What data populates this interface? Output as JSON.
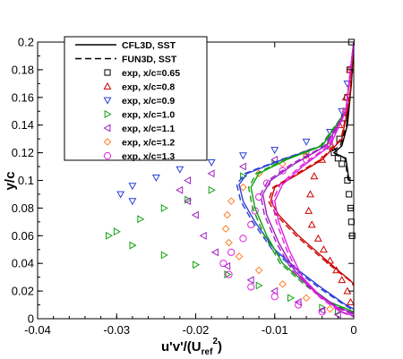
{
  "chart_data": {
    "type": "line",
    "xlabel": "u'v'/(U",
    "xlabel_sub": "ref",
    "xlabel_sup": "2",
    "xlabel_end": ")",
    "ylabel": "y/c",
    "xlim": [
      -0.04,
      0
    ],
    "ylim": [
      0,
      0.2
    ],
    "x_ticks": [
      -0.04,
      -0.03,
      -0.02,
      -0.01,
      0
    ],
    "x_tick_labels": [
      "-0.04",
      "-0.03",
      "-0.02",
      "-0.01",
      "0"
    ],
    "y_ticks": [
      0,
      0.02,
      0.04,
      0.06,
      0.08,
      0.1,
      0.12,
      0.14,
      0.16,
      0.18,
      0.2
    ],
    "y_tick_labels": [
      "0",
      "0.02",
      "0.04",
      "0.06",
      "0.08",
      "0.1",
      "0.12",
      "0.14",
      "0.16",
      "0.18",
      "0.2"
    ],
    "grid": false,
    "legend_position": "top-left",
    "legend": [
      {
        "label": "CFL3D, SST",
        "kind": "solid-line",
        "color": "#000000"
      },
      {
        "label": "FUN3D, SST",
        "kind": "dashed-line",
        "color": "#000000"
      },
      {
        "label": "exp, x/c=0.65",
        "kind": "square",
        "color": "#000000"
      },
      {
        "label": "exp, x/c=0.8",
        "kind": "triangle-up",
        "color": "#cc0000"
      },
      {
        "label": "exp, x/c=0.9",
        "kind": "triangle-down",
        "color": "#2b3fd8"
      },
      {
        "label": "exp, x/c=1.0",
        "kind": "triangle-right",
        "color": "#12a012"
      },
      {
        "label": "exp, x/c=1.1",
        "kind": "triangle-left",
        "color": "#a020c0"
      },
      {
        "label": "exp, x/c=1.2",
        "kind": "diamond",
        "color": "#ff7f28"
      },
      {
        "label": "exp, x/c=1.3",
        "kind": "circle",
        "color": "#e020e0"
      }
    ],
    "cfd_curves": [
      {
        "station": "0.65",
        "color": "#000000",
        "cfl3d": [
          [
            0,
            0.2
          ],
          [
            -0.0003,
            0.17
          ],
          [
            -0.0008,
            0.14
          ],
          [
            -0.0015,
            0.125
          ],
          [
            -0.0025,
            0.12
          ],
          [
            -0.0018,
            0.118
          ],
          [
            -0.001,
            0.116
          ],
          [
            -0.0006,
            0.1
          ]
        ],
        "fun3d": [
          [
            0,
            0.2
          ],
          [
            -0.0003,
            0.17
          ],
          [
            -0.0009,
            0.14
          ],
          [
            -0.0017,
            0.125
          ],
          [
            -0.0028,
            0.121
          ],
          [
            -0.002,
            0.118
          ],
          [
            -0.0011,
            0.116
          ],
          [
            -0.0007,
            0.1
          ]
        ]
      },
      {
        "station": "0.8",
        "color": "#cc0000",
        "cfl3d": [
          [
            0,
            0.2
          ],
          [
            -0.0005,
            0.16
          ],
          [
            -0.0015,
            0.13
          ],
          [
            -0.004,
            0.115
          ],
          [
            -0.0075,
            0.103
          ],
          [
            -0.01,
            0.095
          ],
          [
            -0.0105,
            0.085
          ],
          [
            -0.0095,
            0.075
          ],
          [
            -0.007,
            0.06
          ],
          [
            -0.004,
            0.045
          ],
          [
            -0.002,
            0.035
          ],
          [
            -0.0005,
            0.028
          ],
          [
            0,
            0.025
          ]
        ],
        "fun3d": [
          [
            0,
            0.2
          ],
          [
            -0.0005,
            0.16
          ],
          [
            -0.0016,
            0.13
          ],
          [
            -0.0042,
            0.115
          ],
          [
            -0.0078,
            0.103
          ],
          [
            -0.0102,
            0.095
          ],
          [
            -0.0108,
            0.085
          ],
          [
            -0.0098,
            0.075
          ],
          [
            -0.0073,
            0.06
          ],
          [
            -0.0043,
            0.045
          ],
          [
            -0.0022,
            0.035
          ],
          [
            -0.0006,
            0.028
          ],
          [
            0,
            0.024
          ]
        ]
      },
      {
        "station": "0.9",
        "color": "#2b3fd8",
        "cfl3d": [
          [
            0,
            0.2
          ],
          [
            -0.001,
            0.15
          ],
          [
            -0.004,
            0.125
          ],
          [
            -0.009,
            0.115
          ],
          [
            -0.0135,
            0.105
          ],
          [
            -0.0145,
            0.097
          ],
          [
            -0.014,
            0.085
          ],
          [
            -0.0125,
            0.07
          ],
          [
            -0.01,
            0.05
          ],
          [
            -0.007,
            0.035
          ],
          [
            -0.004,
            0.022
          ],
          [
            -0.001,
            0.01
          ],
          [
            0,
            0.007
          ]
        ],
        "fun3d": [
          [
            0,
            0.2
          ],
          [
            -0.001,
            0.15
          ],
          [
            -0.0042,
            0.125
          ],
          [
            -0.0092,
            0.115
          ],
          [
            -0.0138,
            0.105
          ],
          [
            -0.0148,
            0.097
          ],
          [
            -0.0143,
            0.085
          ],
          [
            -0.0128,
            0.07
          ],
          [
            -0.0103,
            0.05
          ],
          [
            -0.0073,
            0.035
          ],
          [
            -0.0043,
            0.022
          ],
          [
            -0.0012,
            0.01
          ],
          [
            0,
            0.006
          ]
        ]
      },
      {
        "station": "1.0",
        "color": "#12a012",
        "cfl3d": [
          [
            0,
            0.2
          ],
          [
            -0.001,
            0.15
          ],
          [
            -0.004,
            0.125
          ],
          [
            -0.0085,
            0.115
          ],
          [
            -0.012,
            0.105
          ],
          [
            -0.013,
            0.095
          ],
          [
            -0.0125,
            0.08
          ],
          [
            -0.011,
            0.06
          ],
          [
            -0.009,
            0.04
          ],
          [
            -0.006,
            0.025
          ],
          [
            -0.003,
            0.012
          ],
          [
            0,
            0.005
          ]
        ],
        "fun3d": [
          [
            0,
            0.2
          ],
          [
            -0.001,
            0.15
          ],
          [
            -0.0042,
            0.125
          ],
          [
            -0.0088,
            0.115
          ],
          [
            -0.0123,
            0.105
          ],
          [
            -0.0133,
            0.095
          ],
          [
            -0.0128,
            0.08
          ],
          [
            -0.0113,
            0.06
          ],
          [
            -0.0093,
            0.04
          ],
          [
            -0.0063,
            0.025
          ],
          [
            -0.0033,
            0.012
          ],
          [
            0,
            0.004
          ]
        ]
      },
      {
        "station": "1.1",
        "color": "#a020c0",
        "cfl3d": [
          [
            0,
            0.2
          ],
          [
            -0.001,
            0.15
          ],
          [
            -0.0035,
            0.125
          ],
          [
            -0.0075,
            0.112
          ],
          [
            -0.0105,
            0.1
          ],
          [
            -0.0115,
            0.09
          ],
          [
            -0.011,
            0.075
          ],
          [
            -0.0095,
            0.055
          ],
          [
            -0.0075,
            0.035
          ],
          [
            -0.005,
            0.02
          ],
          [
            -0.002,
            0.008
          ],
          [
            0,
            0.004
          ]
        ],
        "fun3d": [
          [
            0,
            0.2
          ],
          [
            -0.001,
            0.15
          ],
          [
            -0.0037,
            0.125
          ],
          [
            -0.0078,
            0.112
          ],
          [
            -0.0108,
            0.1
          ],
          [
            -0.0118,
            0.09
          ],
          [
            -0.0113,
            0.075
          ],
          [
            -0.0098,
            0.055
          ],
          [
            -0.0078,
            0.035
          ],
          [
            -0.0052,
            0.02
          ],
          [
            -0.0022,
            0.008
          ],
          [
            0,
            0.003
          ]
        ]
      },
      {
        "station": "1.3",
        "color": "#e020e0",
        "cfl3d": [
          [
            0,
            0.2
          ],
          [
            -0.001,
            0.15
          ],
          [
            -0.003,
            0.125
          ],
          [
            -0.0065,
            0.11
          ],
          [
            -0.009,
            0.097
          ],
          [
            -0.01,
            0.085
          ],
          [
            -0.0095,
            0.07
          ],
          [
            -0.0082,
            0.05
          ],
          [
            -0.0065,
            0.03
          ],
          [
            -0.004,
            0.015
          ],
          [
            -0.0015,
            0.005
          ],
          [
            0,
            0.002
          ]
        ],
        "fun3d": [
          [
            0,
            0.2
          ],
          [
            -0.001,
            0.15
          ],
          [
            -0.0032,
            0.125
          ],
          [
            -0.0068,
            0.11
          ],
          [
            -0.0093,
            0.097
          ],
          [
            -0.0103,
            0.085
          ],
          [
            -0.0098,
            0.07
          ],
          [
            -0.0085,
            0.05
          ],
          [
            -0.0068,
            0.03
          ],
          [
            -0.0042,
            0.015
          ],
          [
            -0.0017,
            0.005
          ],
          [
            0,
            0.0015
          ]
        ]
      }
    ],
    "experimental_series": [
      {
        "name": "exp, x/c=0.65",
        "marker": "square",
        "color": "#000000",
        "points": [
          [
            -0.0003,
            0.2
          ],
          [
            -0.0005,
            0.18
          ],
          [
            -0.0008,
            0.16
          ],
          [
            -0.0012,
            0.145
          ],
          [
            -0.0018,
            0.13
          ],
          [
            -0.0025,
            0.12
          ],
          [
            -0.002,
            0.116
          ],
          [
            -0.0015,
            0.112
          ],
          [
            -0.0008,
            0.1
          ],
          [
            -0.0006,
            0.09
          ],
          [
            -0.0004,
            0.08
          ],
          [
            -0.0003,
            0.07
          ],
          [
            -0.0002,
            0.06
          ]
        ]
      },
      {
        "name": "exp, x/c=0.8",
        "marker": "triangle-up",
        "color": "#cc0000",
        "points": [
          [
            -0.0005,
            0.18
          ],
          [
            -0.001,
            0.16
          ],
          [
            -0.0018,
            0.14
          ],
          [
            -0.0028,
            0.125
          ],
          [
            -0.004,
            0.115
          ],
          [
            -0.005,
            0.103
          ],
          [
            -0.0055,
            0.09
          ],
          [
            -0.0057,
            0.078
          ],
          [
            -0.0053,
            0.068
          ],
          [
            -0.0045,
            0.058
          ],
          [
            -0.0038,
            0.05
          ],
          [
            -0.003,
            0.042
          ],
          [
            -0.0022,
            0.035
          ],
          [
            -0.0015,
            0.028
          ],
          [
            -0.0008,
            0.02
          ],
          [
            -0.0004,
            0.012
          ]
        ]
      },
      {
        "name": "exp, x/c=0.9",
        "marker": "triangle-down",
        "color": "#2b3fd8",
        "points": [
          [
            -0.0008,
            0.17
          ],
          [
            -0.0015,
            0.15
          ],
          [
            -0.003,
            0.135
          ],
          [
            -0.006,
            0.128
          ],
          [
            -0.01,
            0.122
          ],
          [
            -0.014,
            0.118
          ],
          [
            -0.018,
            0.113
          ],
          [
            -0.022,
            0.108
          ],
          [
            -0.025,
            0.102
          ],
          [
            -0.028,
            0.096
          ],
          [
            -0.0295,
            0.09
          ],
          [
            -0.028,
            0.085
          ]
        ]
      },
      {
        "name": "exp, x/c=1.0",
        "marker": "triangle-right",
        "color": "#12a012",
        "points": [
          [
            -0.001,
            0.15
          ],
          [
            -0.003,
            0.125
          ],
          [
            -0.006,
            0.118
          ],
          [
            -0.01,
            0.112
          ],
          [
            -0.014,
            0.103
          ],
          [
            -0.018,
            0.093
          ],
          [
            -0.021,
            0.086
          ],
          [
            -0.024,
            0.08
          ],
          [
            -0.027,
            0.072
          ],
          [
            -0.03,
            0.063
          ],
          [
            -0.031,
            0.06
          ],
          [
            -0.028,
            0.053
          ],
          [
            -0.024,
            0.046
          ],
          [
            -0.02,
            0.039
          ],
          [
            -0.016,
            0.032
          ],
          [
            -0.012,
            0.024
          ],
          [
            -0.008,
            0.015
          ],
          [
            -0.004,
            0.008
          ],
          [
            -0.002,
            0.005
          ]
        ]
      },
      {
        "name": "exp, x/c=1.1",
        "marker": "triangle-left",
        "color": "#a020c0",
        "points": [
          [
            -0.001,
            0.15
          ],
          [
            -0.003,
            0.13
          ],
          [
            -0.006,
            0.12
          ],
          [
            -0.01,
            0.115
          ],
          [
            -0.014,
            0.11
          ],
          [
            -0.018,
            0.105
          ],
          [
            -0.021,
            0.1
          ],
          [
            -0.022,
            0.093
          ],
          [
            -0.021,
            0.085
          ],
          [
            -0.02,
            0.075
          ],
          [
            -0.019,
            0.06
          ],
          [
            -0.0175,
            0.048
          ],
          [
            -0.016,
            0.038
          ],
          [
            -0.013,
            0.028
          ],
          [
            -0.01,
            0.02
          ],
          [
            -0.007,
            0.012
          ],
          [
            -0.004,
            0.006
          ],
          [
            -0.002,
            0.003
          ]
        ]
      },
      {
        "name": "exp, x/c=1.2",
        "marker": "diamond",
        "color": "#ff7f28",
        "points": [
          [
            -0.001,
            0.15
          ],
          [
            -0.003,
            0.125
          ],
          [
            -0.006,
            0.118
          ],
          [
            -0.009,
            0.112
          ],
          [
            -0.012,
            0.105
          ],
          [
            -0.014,
            0.095
          ],
          [
            -0.0155,
            0.085
          ],
          [
            -0.016,
            0.075
          ],
          [
            -0.0162,
            0.065
          ],
          [
            -0.0158,
            0.055
          ],
          [
            -0.0145,
            0.045
          ],
          [
            -0.012,
            0.035
          ],
          [
            -0.009,
            0.025
          ],
          [
            -0.006,
            0.015
          ],
          [
            -0.003,
            0.007
          ]
        ]
      },
      {
        "name": "exp, x/c=1.3",
        "marker": "circle",
        "color": "#e020e0",
        "points": [
          [
            -0.001,
            0.15
          ],
          [
            -0.003,
            0.125
          ],
          [
            -0.006,
            0.115
          ],
          [
            -0.009,
            0.107
          ],
          [
            -0.011,
            0.098
          ],
          [
            -0.012,
            0.088
          ],
          [
            -0.0125,
            0.078
          ],
          [
            -0.013,
            0.068
          ],
          [
            -0.014,
            0.058
          ],
          [
            -0.0155,
            0.048
          ],
          [
            -0.0165,
            0.04
          ],
          [
            -0.0158,
            0.032
          ],
          [
            -0.013,
            0.023
          ],
          [
            -0.01,
            0.016
          ],
          [
            -0.007,
            0.01
          ],
          [
            -0.004,
            0.005
          ]
        ]
      }
    ]
  }
}
